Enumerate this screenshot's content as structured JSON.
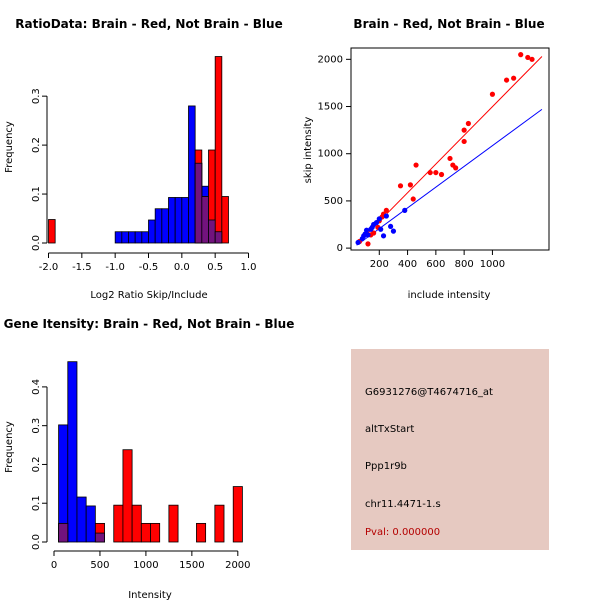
{
  "colors": {
    "brain": "#ff0000",
    "not_brain": "#0000ff",
    "overlap": "#72137d",
    "panel_bg": "#e6c9c1",
    "pval_text": "#b40000"
  },
  "chart_data": [
    {
      "id": "ratio",
      "type": "histogram",
      "title": "RatioData: Brain - Red, Not Brain - Blue",
      "xlabel": "Log2 Ratio Skip/Include",
      "ylabel": "Frequency",
      "xlim": [
        -2.0,
        1.0
      ],
      "ylim": [
        0,
        0.38
      ],
      "xticks": [
        "-2.0",
        "-1.5",
        "-1.0",
        "-0.5",
        "0.0",
        "0.5",
        "1.0"
      ],
      "xtick_values": [
        -2.0,
        -1.5,
        -1.0,
        -0.5,
        0.0,
        0.5,
        1.0
      ],
      "yticks": [
        "0.0",
        "0.1",
        "0.2",
        "0.3"
      ],
      "ytick_values": [
        0.0,
        0.1,
        0.2,
        0.3
      ],
      "series": [
        {
          "name": "Not Brain",
          "color": "blue",
          "bins": [
            [
              -1.0,
              -0.9,
              0.023
            ],
            [
              -0.9,
              -0.8,
              0.023
            ],
            [
              -0.8,
              -0.7,
              0.023
            ],
            [
              -0.7,
              -0.6,
              0.023
            ],
            [
              -0.6,
              -0.5,
              0.023
            ],
            [
              -0.5,
              -0.4,
              0.047
            ],
            [
              -0.4,
              -0.3,
              0.07
            ],
            [
              -0.3,
              -0.2,
              0.07
            ],
            [
              -0.2,
              -0.1,
              0.093
            ],
            [
              -0.1,
              0.0,
              0.093
            ],
            [
              0.0,
              0.1,
              0.093
            ],
            [
              0.1,
              0.2,
              0.28
            ],
            [
              0.2,
              0.3,
              0.163
            ],
            [
              0.3,
              0.4,
              0.116
            ],
            [
              0.4,
              0.5,
              0.047
            ],
            [
              0.5,
              0.6,
              0.023
            ]
          ]
        },
        {
          "name": "Brain",
          "color": "red",
          "bins": [
            [
              -2.0,
              -1.9,
              0.048
            ],
            [
              0.2,
              0.3,
              0.19
            ],
            [
              0.3,
              0.4,
              0.095
            ],
            [
              0.4,
              0.5,
              0.19
            ],
            [
              0.5,
              0.6,
              0.381
            ],
            [
              0.6,
              0.7,
              0.095
            ]
          ]
        }
      ]
    },
    {
      "id": "scatter",
      "type": "scatter",
      "title": "Brain - Red, Not Brain - Blue",
      "xlabel": "include intensity",
      "ylabel": "skip intensity",
      "xlim": [
        0,
        1400
      ],
      "ylim": [
        -20,
        2120
      ],
      "xticks": [
        "200",
        "400",
        "600",
        "800",
        "1000"
      ],
      "xtick_values": [
        200,
        400,
        600,
        800,
        1000
      ],
      "yticks": [
        "0",
        "500",
        "1000",
        "1500",
        "2000"
      ],
      "ytick_values": [
        0,
        500,
        1000,
        1500,
        2000
      ],
      "series": [
        {
          "name": "Brain",
          "color": "red",
          "points": [
            [
              60,
              70
            ],
            [
              120,
              45
            ],
            [
              140,
              140
            ],
            [
              160,
              160
            ],
            [
              190,
              220
            ],
            [
              200,
              290
            ],
            [
              220,
              330
            ],
            [
              230,
              360
            ],
            [
              250,
              400
            ],
            [
              350,
              660
            ],
            [
              420,
              670
            ],
            [
              440,
              520
            ],
            [
              460,
              880
            ],
            [
              560,
              800
            ],
            [
              600,
              800
            ],
            [
              640,
              780
            ],
            [
              700,
              950
            ],
            [
              720,
              880
            ],
            [
              740,
              850
            ],
            [
              800,
              1130
            ],
            [
              800,
              1250
            ],
            [
              830,
              1320
            ],
            [
              1000,
              1630
            ],
            [
              1100,
              1780
            ],
            [
              1150,
              1800
            ],
            [
              1200,
              2050
            ],
            [
              1250,
              2020
            ],
            [
              1280,
              2000
            ]
          ],
          "fit": [
            [
              40,
              40
            ],
            [
              1350,
              2030
            ]
          ]
        },
        {
          "name": "Not Brain",
          "color": "blue",
          "points": [
            [
              50,
              60
            ],
            [
              80,
              100
            ],
            [
              90,
              130
            ],
            [
              100,
              150
            ],
            [
              110,
              190
            ],
            [
              120,
              140
            ],
            [
              140,
              200
            ],
            [
              150,
              220
            ],
            [
              160,
              250
            ],
            [
              180,
              270
            ],
            [
              200,
              310
            ],
            [
              210,
              200
            ],
            [
              230,
              130
            ],
            [
              250,
              340
            ],
            [
              280,
              230
            ],
            [
              300,
              180
            ],
            [
              380,
              400
            ]
          ],
          "fit": [
            [
              40,
              30
            ],
            [
              1350,
              1470
            ]
          ]
        }
      ]
    },
    {
      "id": "gene",
      "type": "histogram",
      "title": "Gene Itensity: Brain - Red, Not Brain - Blue",
      "xlabel": "Intensity",
      "ylabel": "Frequency",
      "xlim": [
        0,
        2100
      ],
      "ylim": [
        0,
        0.49
      ],
      "xticks": [
        "0",
        "500",
        "1000",
        "1500",
        "2000"
      ],
      "xtick_values": [
        0,
        500,
        1000,
        1500,
        2000
      ],
      "yticks": [
        "0.0",
        "0.1",
        "0.2",
        "0.3",
        "0.4"
      ],
      "ytick_values": [
        0.0,
        0.1,
        0.2,
        0.3,
        0.4
      ],
      "series": [
        {
          "name": "Not Brain",
          "color": "blue",
          "bins": [
            [
              50,
              150,
              0.302
            ],
            [
              150,
              250,
              0.465
            ],
            [
              250,
              350,
              0.116
            ],
            [
              350,
              450,
              0.093
            ],
            [
              450,
              550,
              0.023
            ]
          ]
        },
        {
          "name": "Brain",
          "color": "red",
          "bins": [
            [
              50,
              150,
              0.048
            ],
            [
              450,
              550,
              0.048
            ],
            [
              650,
              750,
              0.095
            ],
            [
              750,
              850,
              0.238
            ],
            [
              850,
              950,
              0.095
            ],
            [
              950,
              1050,
              0.048
            ],
            [
              1050,
              1150,
              0.048
            ],
            [
              1250,
              1350,
              0.095
            ],
            [
              1550,
              1650,
              0.048
            ],
            [
              1750,
              1850,
              0.095
            ],
            [
              1950,
              2050,
              0.143
            ]
          ]
        }
      ]
    }
  ],
  "info": {
    "probe": "G6931276@T4674716_at",
    "event": "altTxStart",
    "gene": "Ppp1r9b",
    "location": "chr11.4471-1.s",
    "pval": "Pval: 0.000000"
  }
}
